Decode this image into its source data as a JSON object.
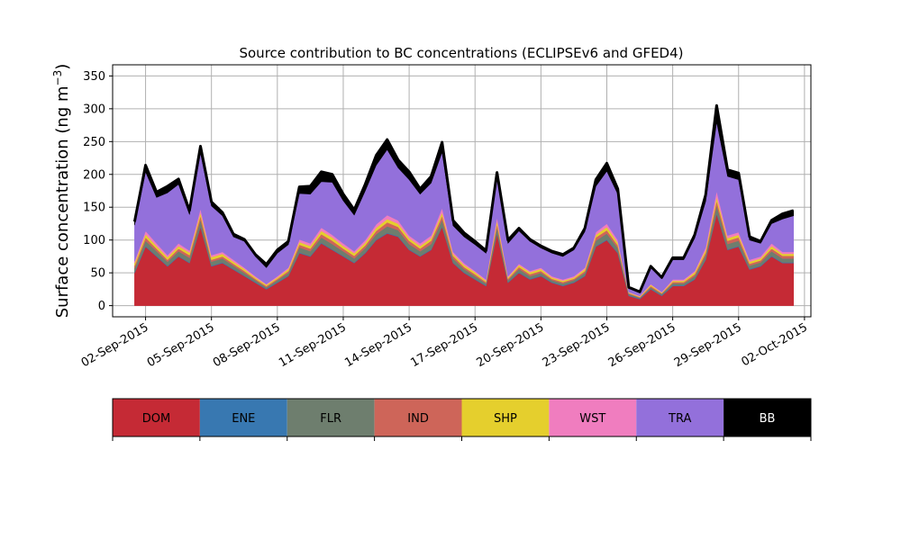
{
  "chart_data": {
    "type": "area",
    "title": "Source contribution to BC concentrations (ECLIPSEv6 and GFED4)",
    "ylabel": "Surface concentration (ng m",
    "ylabel_sup": "−3",
    "ylabel_close": ")",
    "xlabel": "",
    "ylim": [
      -17,
      367
    ],
    "yticks": [
      0,
      50,
      100,
      150,
      200,
      250,
      300,
      350
    ],
    "xlim": [
      "2015-08-31T12:00",
      "2015-10-02T07:00"
    ],
    "xticks": [
      "2015-09-02",
      "2015-09-05",
      "2015-09-08",
      "2015-09-11",
      "2015-09-14",
      "2015-09-17",
      "2015-09-20",
      "2015-09-23",
      "2015-09-26",
      "2015-09-29",
      "2015-10-02"
    ],
    "xtick_labels": [
      "02-Sep-2015",
      "05-Sep-2015",
      "08-Sep-2015",
      "11-Sep-2015",
      "14-Sep-2015",
      "17-Sep-2015",
      "20-Sep-2015",
      "23-Sep-2015",
      "26-Sep-2015",
      "29-Sep-2015",
      "02-Oct-2015"
    ],
    "grid": true,
    "stacked": true,
    "x": [
      "2015-09-01T12:00",
      "2015-09-02T00:00",
      "2015-09-02T12:00",
      "2015-09-03T00:00",
      "2015-09-03T12:00",
      "2015-09-04T00:00",
      "2015-09-04T12:00",
      "2015-09-05T00:00",
      "2015-09-05T12:00",
      "2015-09-06T00:00",
      "2015-09-06T12:00",
      "2015-09-07T00:00",
      "2015-09-07T12:00",
      "2015-09-08T00:00",
      "2015-09-08T12:00",
      "2015-09-09T00:00",
      "2015-09-09T12:00",
      "2015-09-10T00:00",
      "2015-09-10T12:00",
      "2015-09-11T00:00",
      "2015-09-11T12:00",
      "2015-09-12T00:00",
      "2015-09-12T12:00",
      "2015-09-13T00:00",
      "2015-09-13T12:00",
      "2015-09-14T00:00",
      "2015-09-14T12:00",
      "2015-09-15T00:00",
      "2015-09-15T12:00",
      "2015-09-16T00:00",
      "2015-09-16T12:00",
      "2015-09-17T00:00",
      "2015-09-17T12:00",
      "2015-09-18T00:00",
      "2015-09-18T12:00",
      "2015-09-19T00:00",
      "2015-09-19T12:00",
      "2015-09-20T00:00",
      "2015-09-20T12:00",
      "2015-09-21T00:00",
      "2015-09-21T12:00",
      "2015-09-22T00:00",
      "2015-09-22T12:00",
      "2015-09-23T00:00",
      "2015-09-23T12:00",
      "2015-09-24T00:00",
      "2015-09-24T12:00",
      "2015-09-25T00:00",
      "2015-09-25T12:00",
      "2015-09-26T00:00",
      "2015-09-26T12:00",
      "2015-09-27T00:00",
      "2015-09-27T12:00",
      "2015-09-28T00:00",
      "2015-09-28T12:00",
      "2015-09-29T00:00",
      "2015-09-29T12:00",
      "2015-09-30T00:00",
      "2015-09-30T12:00",
      "2015-10-01T00:00",
      "2015-10-01T12:00"
    ],
    "series": [
      {
        "name": "DOM",
        "color": "#c52a35",
        "values": [
          50,
          90,
          75,
          60,
          75,
          65,
          120,
          60,
          65,
          55,
          45,
          35,
          25,
          35,
          45,
          80,
          75,
          95,
          85,
          75,
          65,
          80,
          100,
          110,
          105,
          85,
          75,
          85,
          120,
          65,
          50,
          40,
          30,
          110,
          35,
          50,
          40,
          45,
          35,
          30,
          35,
          45,
          90,
          100,
          80,
          15,
          10,
          25,
          15,
          30,
          30,
          40,
          70,
          140,
          85,
          90,
          55,
          60,
          75,
          65,
          65
        ]
      },
      {
        "name": "ENE",
        "color": "#3878b1",
        "values": [
          1,
          1,
          1,
          1,
          1,
          1,
          1,
          1,
          1,
          1,
          1,
          1,
          1,
          1,
          1,
          1,
          1,
          1,
          1,
          1,
          1,
          1,
          1,
          1,
          1,
          1,
          1,
          1,
          1,
          1,
          1,
          1,
          1,
          1,
          1,
          1,
          1,
          1,
          1,
          1,
          1,
          1,
          1,
          1,
          1,
          1,
          1,
          1,
          1,
          1,
          1,
          1,
          1,
          1,
          1,
          1,
          1,
          1,
          1,
          1,
          1
        ]
      },
      {
        "name": "FLR",
        "color": "#6e7e6e",
        "values": [
          6,
          8,
          7,
          6,
          7,
          7,
          10,
          6,
          6,
          5,
          4,
          3,
          2,
          3,
          4,
          8,
          7,
          8,
          8,
          7,
          6,
          7,
          8,
          10,
          9,
          8,
          7,
          8,
          10,
          6,
          5,
          4,
          3,
          9,
          3,
          5,
          4,
          4,
          3,
          3,
          3,
          4,
          8,
          9,
          7,
          2,
          1,
          2,
          2,
          3,
          3,
          4,
          6,
          12,
          8,
          8,
          5,
          5,
          7,
          6,
          6
        ]
      },
      {
        "name": "IND",
        "color": "#ce6559",
        "values": [
          4,
          5,
          4,
          3,
          4,
          4,
          6,
          3,
          3,
          3,
          3,
          2,
          2,
          2,
          3,
          4,
          4,
          5,
          5,
          4,
          4,
          4,
          5,
          6,
          5,
          5,
          4,
          5,
          6,
          4,
          3,
          3,
          2,
          5,
          2,
          3,
          3,
          3,
          2,
          2,
          2,
          3,
          5,
          5,
          4,
          1,
          1,
          2,
          1,
          2,
          2,
          3,
          4,
          7,
          5,
          5,
          3,
          3,
          4,
          4,
          4
        ]
      },
      {
        "name": "SHP",
        "color": "#e5cf2d",
        "values": [
          4,
          5,
          4,
          4,
          4,
          4,
          5,
          4,
          4,
          3,
          3,
          2,
          2,
          2,
          3,
          4,
          4,
          5,
          5,
          4,
          4,
          4,
          5,
          5,
          5,
          4,
          4,
          4,
          5,
          3,
          3,
          3,
          2,
          5,
          2,
          3,
          3,
          3,
          2,
          2,
          2,
          3,
          4,
          5,
          4,
          1,
          1,
          2,
          1,
          2,
          2,
          3,
          4,
          6,
          4,
          4,
          3,
          3,
          4,
          3,
          3
        ]
      },
      {
        "name": "WST",
        "color": "#f07dbf",
        "values": [
          3,
          5,
          4,
          3,
          4,
          3,
          6,
          3,
          3,
          3,
          2,
          2,
          1,
          2,
          2,
          4,
          4,
          5,
          4,
          4,
          3,
          4,
          5,
          6,
          5,
          4,
          4,
          4,
          7,
          3,
          3,
          2,
          2,
          5,
          2,
          2,
          2,
          2,
          2,
          2,
          2,
          2,
          4,
          5,
          4,
          1,
          1,
          1,
          1,
          2,
          2,
          2,
          4,
          9,
          4,
          4,
          3,
          3,
          4,
          3,
          3
        ]
      },
      {
        "name": "TRA",
        "color": "#9370db",
        "values": [
          55,
          90,
          70,
          95,
          90,
          55,
          85,
          75,
          55,
          35,
          40,
          30,
          25,
          35,
          35,
          70,
          75,
          70,
          80,
          65,
          55,
          75,
          90,
          100,
          80,
          85,
          75,
          80,
          85,
          40,
          40,
          40,
          40,
          60,
          50,
          50,
          45,
          30,
          35,
          35,
          40,
          55,
          70,
          80,
          70,
          5,
          5,
          25,
          20,
          30,
          30,
          50,
          70,
          105,
          90,
          80,
          30,
          20,
          30,
          50,
          55
        ]
      },
      {
        "name": "BB",
        "color": "#000000",
        "values": [
          5,
          10,
          8,
          10,
          8,
          6,
          10,
          6,
          5,
          4,
          3,
          3,
          5,
          5,
          5,
          10,
          12,
          15,
          12,
          10,
          8,
          10,
          15,
          15,
          12,
          12,
          8,
          10,
          15,
          8,
          6,
          5,
          4,
          8,
          5,
          4,
          3,
          3,
          3,
          3,
          3,
          5,
          10,
          12,
          8,
          2,
          1,
          2,
          2,
          3,
          3,
          5,
          10,
          25,
          10,
          10,
          5,
          3,
          5,
          8,
          8
        ]
      }
    ]
  },
  "legend": {
    "items": [
      {
        "label": "DOM",
        "color": "#c52a35",
        "text_color": "#000000"
      },
      {
        "label": "ENE",
        "color": "#3878b1",
        "text_color": "#000000"
      },
      {
        "label": "FLR",
        "color": "#6e7e6e",
        "text_color": "#000000"
      },
      {
        "label": "IND",
        "color": "#ce6559",
        "text_color": "#000000"
      },
      {
        "label": "SHP",
        "color": "#e5cf2d",
        "text_color": "#000000"
      },
      {
        "label": "WST",
        "color": "#f07dbf",
        "text_color": "#000000"
      },
      {
        "label": "TRA",
        "color": "#9370db",
        "text_color": "#000000"
      },
      {
        "label": "BB",
        "color": "#000000",
        "text_color": "#ffffff"
      }
    ]
  }
}
